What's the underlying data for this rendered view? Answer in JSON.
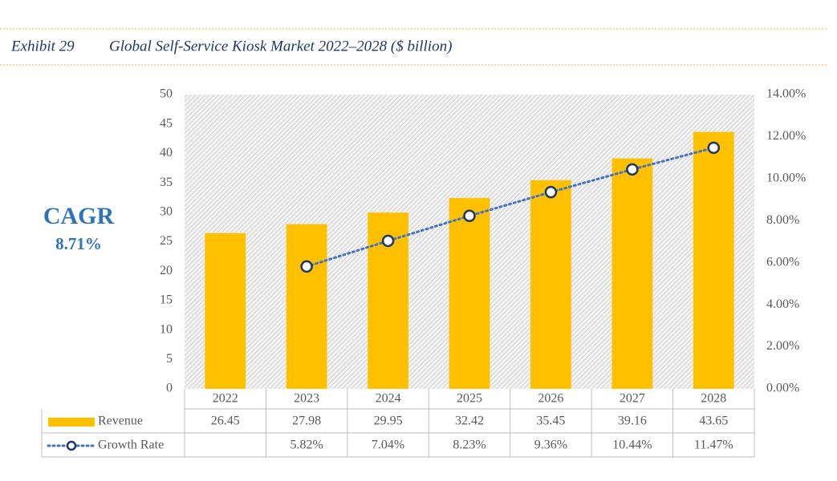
{
  "chart_data": {
    "type": "bar",
    "exhibit": "Exhibit 29",
    "title": "Global Self-Service Kiosk Market 2022–2028 ($ billion)",
    "annotation": {
      "label": "CAGR",
      "value": "8.71%"
    },
    "categories": [
      "2022",
      "2023",
      "2024",
      "2025",
      "2026",
      "2027",
      "2028"
    ],
    "series": [
      {
        "name": "Revenue",
        "color": "#ffc000",
        "values": [
          26.45,
          27.98,
          29.95,
          32.42,
          35.45,
          39.16,
          43.65
        ]
      },
      {
        "name": "Growth Rate",
        "color": "#4472c4",
        "axis": "y2",
        "values": [
          null,
          5.82,
          7.04,
          8.23,
          9.36,
          10.44,
          11.47
        ],
        "value_labels": [
          null,
          "5.82%",
          "7.04%",
          "8.23%",
          "9.36%",
          "10.44%",
          "11.47%"
        ]
      }
    ],
    "ylim": [
      0,
      50
    ],
    "yticks": [
      0,
      5,
      10,
      15,
      20,
      25,
      30,
      35,
      40,
      45,
      50
    ],
    "y2lim": [
      0,
      14
    ],
    "y2ticks": [
      {
        "value": 0,
        "label": "0.00%"
      },
      {
        "value": 2,
        "label": "2.00%"
      },
      {
        "value": 4,
        "label": "4.00%"
      },
      {
        "value": 6,
        "label": "6.00%"
      },
      {
        "value": 8,
        "label": "8.00%"
      },
      {
        "value": 10,
        "label": "10.00%"
      },
      {
        "value": 12,
        "label": "12.00%"
      },
      {
        "value": 14,
        "label": "14.00%"
      }
    ]
  }
}
